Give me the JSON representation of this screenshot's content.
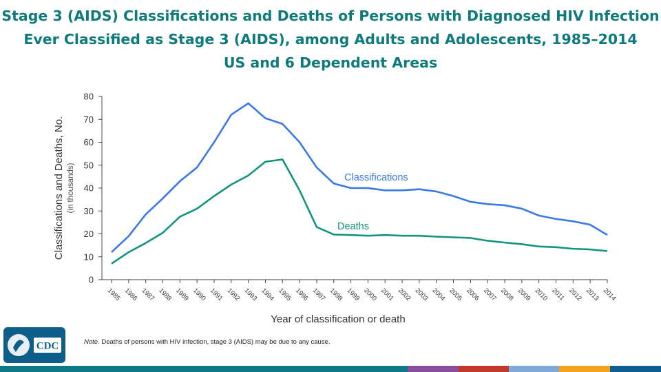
{
  "title": {
    "line1": "Stage 3 (AIDS) Classifications and Deaths of Persons with Diagnosed HIV Infection",
    "line2": "Ever Classified as Stage 3 (AIDS), among Adults and Adolescents, 1985–2014",
    "line3": "US and 6 Dependent Areas"
  },
  "note": {
    "label": "Note.",
    "text": " Deaths of persons with HIV infection, stage 3 (AIDS) may be due to any cause."
  },
  "logo": {
    "text": "CDC"
  },
  "colors": {
    "title": "#0f7a7b",
    "classifications": "#3b78e7",
    "deaths": "#14937f",
    "bottom_bar": [
      "#0e7a86",
      "#8b4f9f",
      "#c0392b",
      "#7fa9d6",
      "#f4a41c",
      "#0f5e91"
    ]
  },
  "chart_data": {
    "type": "line",
    "x": [
      "1985",
      "1986",
      "1987",
      "1988",
      "1989",
      "1990",
      "1991",
      "1992",
      "1993",
      "1994",
      "1995",
      "1996",
      "1997",
      "1998",
      "1999",
      "2000",
      "2001",
      "2002",
      "2003",
      "2004",
      "2005",
      "2006",
      "2007",
      "2008",
      "2009",
      "2010",
      "2011",
      "2012",
      "2013",
      "2014"
    ],
    "series": [
      {
        "name": "Classifications",
        "values": [
          12,
          19,
          28.5,
          35.5,
          43,
          49,
          60,
          72,
          77,
          70.5,
          68,
          60,
          49,
          42,
          40,
          40,
          39,
          39,
          39.5,
          38.5,
          36.5,
          34,
          33,
          32.5,
          31,
          28,
          26.5,
          25.5,
          24,
          19.5
        ]
      },
      {
        "name": "Deaths",
        "values": [
          7,
          12,
          16,
          20.5,
          27.5,
          31,
          36.5,
          41.5,
          45.5,
          51.5,
          52.5,
          39,
          23,
          19.7,
          19.5,
          19.2,
          19.5,
          19.2,
          19.2,
          18.8,
          18.5,
          18.2,
          17,
          16.2,
          15.5,
          14.5,
          14.2,
          13.5,
          13.2,
          12.5
        ]
      }
    ],
    "ylabel": "Classifications and Deaths, No.",
    "ylabel_sub": "(in thousands)",
    "xlabel": "Year of classification or death",
    "yticks": [
      0,
      10,
      20,
      30,
      40,
      50,
      60,
      70,
      80
    ],
    "ylim": [
      0,
      80
    ],
    "grid": false
  }
}
